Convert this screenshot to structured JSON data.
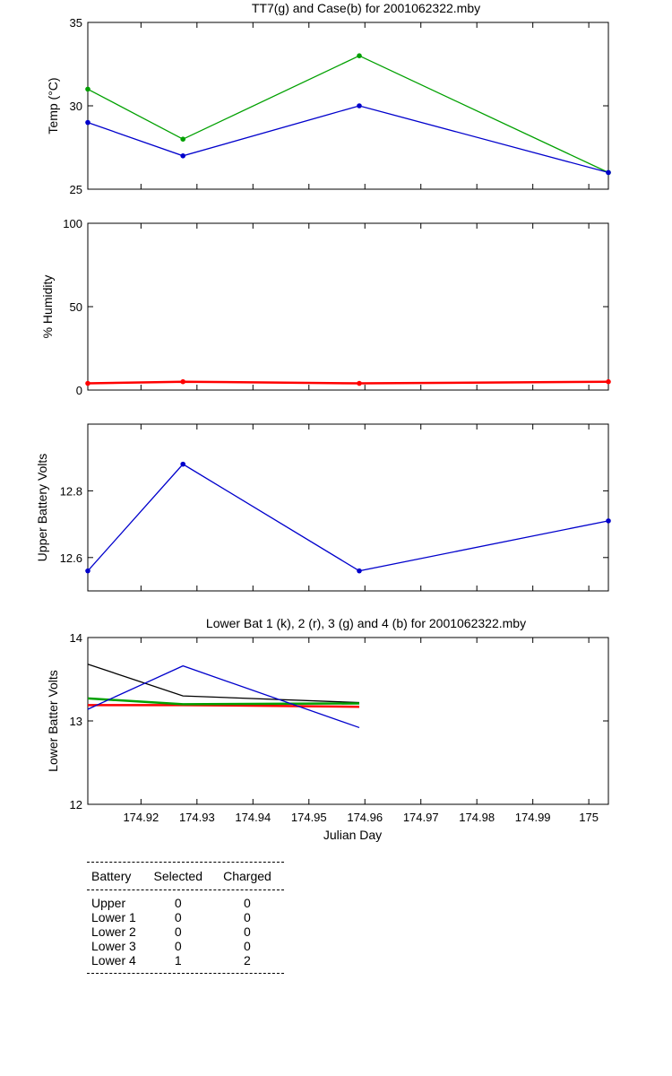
{
  "chart_data": [
    {
      "type": "line",
      "title": "TT7(g) and Case(b) for 2001062322.mby",
      "xlabel": "",
      "ylabel": "Temp  (°C)",
      "xlim": [
        174.9105,
        175.0035
      ],
      "ylim": [
        25,
        35
      ],
      "yticks": [
        25,
        30,
        35
      ],
      "yticklabels": [
        "25",
        "30",
        "35"
      ],
      "x": [
        174.9105,
        174.9275,
        174.959,
        175.0035
      ],
      "series": [
        {
          "color": "#00a000",
          "values": [
            31,
            28,
            33,
            26
          ]
        },
        {
          "color": "#0000cc",
          "values": [
            29,
            27,
            30,
            26
          ]
        }
      ],
      "grid": false
    },
    {
      "type": "line",
      "title": "",
      "xlabel": "",
      "ylabel": "% Humidity",
      "xlim": [
        174.9105,
        175.0035
      ],
      "ylim": [
        0,
        100
      ],
      "yticks": [
        0,
        50,
        100
      ],
      "yticklabels": [
        "0",
        "50",
        "100"
      ],
      "x": [
        174.9105,
        174.9275,
        174.959,
        175.0035
      ],
      "series": [
        {
          "color": "#ff0000",
          "values": [
            4,
            5,
            4,
            5
          ]
        }
      ],
      "grid": false
    },
    {
      "type": "line",
      "title": "",
      "xlabel": "",
      "ylabel": "Upper Battery Volts",
      "xlim": [
        174.9105,
        175.0035
      ],
      "ylim": [
        12.5,
        13.0
      ],
      "yticks": [
        12.6,
        12.8
      ],
      "yticklabels": [
        "12.6",
        "12.8"
      ],
      "x": [
        174.9105,
        174.9275,
        174.959,
        175.0035
      ],
      "series": [
        {
          "color": "#0000cc",
          "values": [
            12.56,
            12.88,
            12.56,
            12.71
          ]
        }
      ],
      "grid": false
    },
    {
      "type": "line",
      "title": "Lower Bat 1 (k), 2 (r), 3 (g) and 4 (b) for 2001062322.mby",
      "xlabel": "Julian Day",
      "ylabel": "Lower Batter Volts",
      "xlim": [
        174.9105,
        175.0035
      ],
      "ylim": [
        12,
        14
      ],
      "yticks": [
        12,
        13,
        14
      ],
      "yticklabels": [
        "12",
        "13",
        "14"
      ],
      "xticks": [
        174.92,
        174.93,
        174.94,
        174.95,
        174.96,
        174.97,
        174.98,
        174.99,
        175.0
      ],
      "xticklabels": [
        "174.92",
        "174.93",
        "174.94",
        "174.95",
        "174.96",
        "174.97",
        "174.98",
        "174.99",
        "175"
      ],
      "x": [
        174.9105,
        174.9275,
        174.959
      ],
      "series": [
        {
          "color": "#000000",
          "values": [
            13.68,
            13.3,
            13.22
          ]
        },
        {
          "color": "#ff0000",
          "values": [
            13.19,
            13.19,
            13.17
          ]
        },
        {
          "color": "#00a000",
          "values": [
            13.27,
            13.2,
            13.21
          ]
        },
        {
          "color": "#0000cc",
          "values": [
            13.14,
            13.66,
            12.92
          ]
        }
      ],
      "grid": false
    }
  ],
  "table": {
    "headers": [
      "Battery",
      "Selected",
      "Charged"
    ],
    "rows": [
      [
        "Upper",
        "0",
        "0"
      ],
      [
        "Lower 1",
        "0",
        "0"
      ],
      [
        "Lower 2",
        "0",
        "0"
      ],
      [
        "Lower 3",
        "0",
        "0"
      ],
      [
        "Lower 4",
        "1",
        "2"
      ]
    ]
  }
}
